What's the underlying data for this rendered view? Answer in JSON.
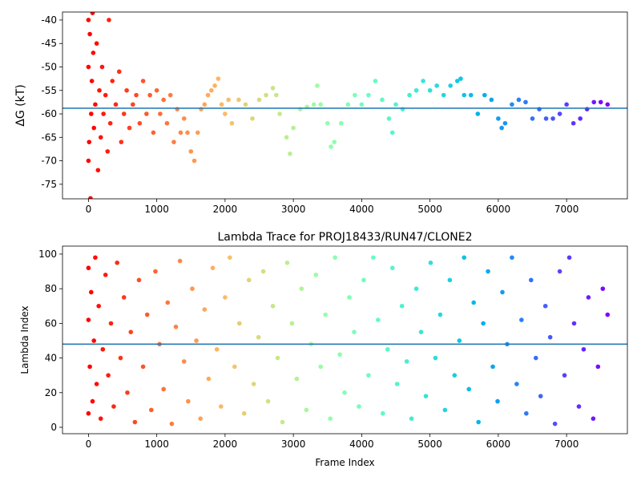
{
  "chart_data": [
    {
      "type": "scatter",
      "ylabel": "ΔG (kT)",
      "colormap": "rainbow_r",
      "hline": -58.8,
      "hline_color": "#1f77b4",
      "xlim": [
        -380,
        7890
      ],
      "ylim": [
        -78.1,
        -38.3
      ],
      "xticks": [
        0,
        1000,
        2000,
        3000,
        4000,
        5000,
        6000,
        7000
      ],
      "yticks": [
        -75,
        -70,
        -65,
        -60,
        -55,
        -50,
        -45,
        -40
      ],
      "x": [
        0,
        0,
        0,
        10,
        20,
        30,
        40,
        50,
        60,
        70,
        80,
        100,
        120,
        140,
        160,
        180,
        200,
        220,
        250,
        280,
        300,
        320,
        350,
        400,
        450,
        480,
        520,
        560,
        600,
        650,
        700,
        750,
        800,
        850,
        900,
        950,
        1000,
        1050,
        1100,
        1150,
        1200,
        1250,
        1300,
        1350,
        1400,
        1450,
        1500,
        1550,
        1600,
        1650,
        1700,
        1750,
        1800,
        1850,
        1900,
        1950,
        2000,
        2050,
        2100,
        2200,
        2300,
        2400,
        2500,
        2600,
        2700,
        2750,
        2800,
        2900,
        2950,
        3000,
        3100,
        3200,
        3300,
        3350,
        3400,
        3500,
        3550,
        3600,
        3700,
        3800,
        3900,
        4000,
        4100,
        4200,
        4300,
        4400,
        4450,
        4500,
        4600,
        4700,
        4800,
        4900,
        5000,
        5100,
        5200,
        5300,
        5400,
        5450,
        5500,
        5600,
        5700,
        5800,
        5900,
        6000,
        6050,
        6100,
        6200,
        6300,
        6400,
        6500,
        6600,
        6700,
        6800,
        6900,
        7000,
        7100,
        7200,
        7300,
        7400,
        7500,
        7600
      ],
      "y": [
        -40,
        -50,
        -70,
        -66,
        -43,
        -78,
        -60,
        -53,
        -38.5,
        -47,
        -63,
        -58,
        -45,
        -72,
        -55,
        -65,
        -50,
        -60,
        -56,
        -68,
        -40,
        -62,
        -53,
        -58,
        -51,
        -66,
        -60,
        -55,
        -63,
        -58,
        -56,
        -62,
        -53,
        -60,
        -56,
        -64,
        -55,
        -60,
        -57,
        -62,
        -56,
        -66,
        -59,
        -64,
        -61,
        -64,
        -68,
        -70,
        -64,
        -59,
        -58,
        -56,
        -55,
        -54,
        -52.5,
        -58,
        -60,
        -57,
        -62,
        -57,
        -58,
        -61,
        -57,
        -56,
        -54.5,
        -56,
        -60,
        -65,
        -68.5,
        -63,
        -59,
        -58.5,
        -58,
        -54,
        -58,
        -62,
        -67,
        -66,
        -62,
        -58,
        -56,
        -58,
        -56,
        -53,
        -57,
        -61,
        -64,
        -58,
        -59,
        -56,
        -55,
        -53,
        -55,
        -54,
        -56,
        -54,
        -53,
        -52.5,
        -56,
        -56,
        -60,
        -56,
        -57,
        -61,
        -63,
        -62,
        -58,
        -57,
        -57.5,
        -61,
        -59,
        -61,
        -61,
        -60,
        -58,
        -62,
        -61,
        -59,
        -57.5,
        -57.5,
        -58
      ]
    },
    {
      "type": "scatter",
      "title": "Lambda Trace for PROJ18433/RUN47/CLONE2",
      "xlabel": "Frame Index",
      "ylabel": "Lambda Index",
      "colormap": "rainbow_r",
      "hline": 48,
      "hline_color": "#1f77b4",
      "xlim": [
        -380,
        7890
      ],
      "ylim": [
        -3.7,
        104.6
      ],
      "xticks": [
        0,
        1000,
        2000,
        3000,
        4000,
        5000,
        6000,
        7000
      ],
      "yticks": [
        0,
        20,
        40,
        60,
        80,
        100
      ],
      "x": [
        0,
        0,
        0,
        20,
        40,
        60,
        80,
        100,
        120,
        150,
        180,
        210,
        250,
        290,
        330,
        370,
        420,
        470,
        520,
        570,
        620,
        680,
        740,
        800,
        860,
        920,
        980,
        1040,
        1100,
        1160,
        1220,
        1280,
        1340,
        1400,
        1460,
        1520,
        1580,
        1640,
        1700,
        1760,
        1820,
        1880,
        1940,
        2000,
        2070,
        2140,
        2210,
        2280,
        2350,
        2420,
        2490,
        2560,
        2630,
        2700,
        2770,
        2840,
        2910,
        2980,
        3050,
        3120,
        3190,
        3260,
        3330,
        3400,
        3470,
        3540,
        3610,
        3680,
        3750,
        3820,
        3890,
        3960,
        4030,
        4100,
        4170,
        4240,
        4310,
        4380,
        4450,
        4520,
        4590,
        4660,
        4730,
        4800,
        4870,
        4940,
        5010,
        5080,
        5150,
        5220,
        5290,
        5360,
        5430,
        5500,
        5570,
        5640,
        5710,
        5780,
        5850,
        5920,
        5990,
        6060,
        6130,
        6200,
        6270,
        6340,
        6410,
        6480,
        6550,
        6620,
        6690,
        6760,
        6830,
        6900,
        6970,
        7040,
        7110,
        7180,
        7250,
        7320,
        7390,
        7460,
        7530,
        7600
      ],
      "y": [
        8,
        62,
        92,
        35,
        78,
        15,
        50,
        98,
        25,
        70,
        5,
        45,
        88,
        30,
        60,
        12,
        95,
        40,
        75,
        20,
        55,
        3,
        85,
        35,
        65,
        10,
        90,
        48,
        22,
        72,
        2,
        58,
        96,
        38,
        15,
        80,
        50,
        5,
        68,
        28,
        92,
        45,
        12,
        75,
        98,
        35,
        60,
        8,
        85,
        25,
        52,
        90,
        15,
        70,
        40,
        3,
        95,
        60,
        28,
        80,
        10,
        48,
        88,
        35,
        65,
        5,
        98,
        42,
        20,
        75,
        55,
        12,
        85,
        30,
        98,
        62,
        8,
        45,
        92,
        25,
        70,
        38,
        5,
        80,
        55,
        18,
        95,
        40,
        65,
        10,
        85,
        30,
        50,
        98,
        22,
        72,
        3,
        60,
        90,
        35,
        15,
        78,
        48,
        98,
        25,
        62,
        8,
        85,
        40,
        18,
        70,
        52,
        2,
        90,
        30,
        98,
        60,
        12,
        45,
        75,
        5,
        35,
        80,
        65
      ]
    }
  ]
}
